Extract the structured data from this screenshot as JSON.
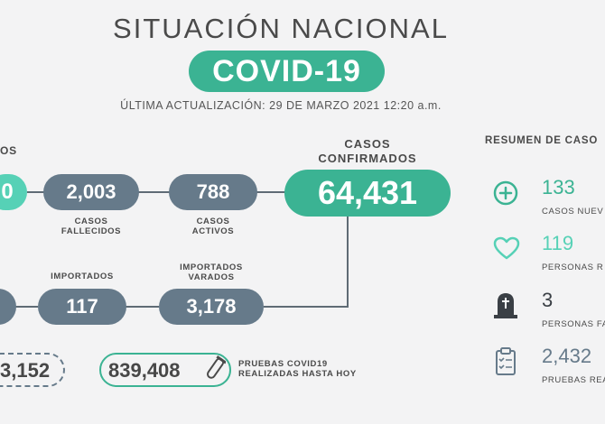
{
  "header": {
    "title": "SITUACIÓN NACIONAL",
    "badge": "COVID-19",
    "updated": "ÚLTIMA ACTUALIZACIÓN: 29 DE MARZO 2021 12:20 a.m."
  },
  "row1": {
    "partial_label": "OS",
    "partial_value": "0",
    "deaths_value": "2,003",
    "deaths_label_1": "CASOS",
    "deaths_label_2": "FALLECIDOS",
    "active_value": "788",
    "active_label_1": "CASOS",
    "active_label_2": "ACTIVOS",
    "confirmed_label_1": "CASOS",
    "confirmed_label_2": "CONFIRMADOS",
    "confirmed_value": "64,431"
  },
  "row2": {
    "imported_label": "IMPORTADOS",
    "imported_value": "117",
    "stranded_label_1": "IMPORTADOS",
    "stranded_label_2": "VARADOS",
    "stranded_value": "3,178"
  },
  "row3": {
    "partial_value": "3,152",
    "tests_value": "839,408",
    "tests_label_1": "PRUEBAS COVID19",
    "tests_label_2": "REALIZADAS HASTA HOY"
  },
  "summary": {
    "title": "RESUMEN DE CASO",
    "items": [
      {
        "value": "133",
        "label": "CASOS NUEV",
        "icon": "plus-circle-icon",
        "color": "#3bb393"
      },
      {
        "value": "119",
        "label": "PERSONAS R",
        "icon": "heart-icon",
        "color": "#56d1b6"
      },
      {
        "value": "3",
        "label": "PERSONAS FA",
        "icon": "tombstone-icon",
        "color": "#3a3f45"
      },
      {
        "value": "2,432",
        "label": "PRUEBAS REA",
        "icon": "clipboard-icon",
        "color": "#667a8a"
      }
    ]
  }
}
